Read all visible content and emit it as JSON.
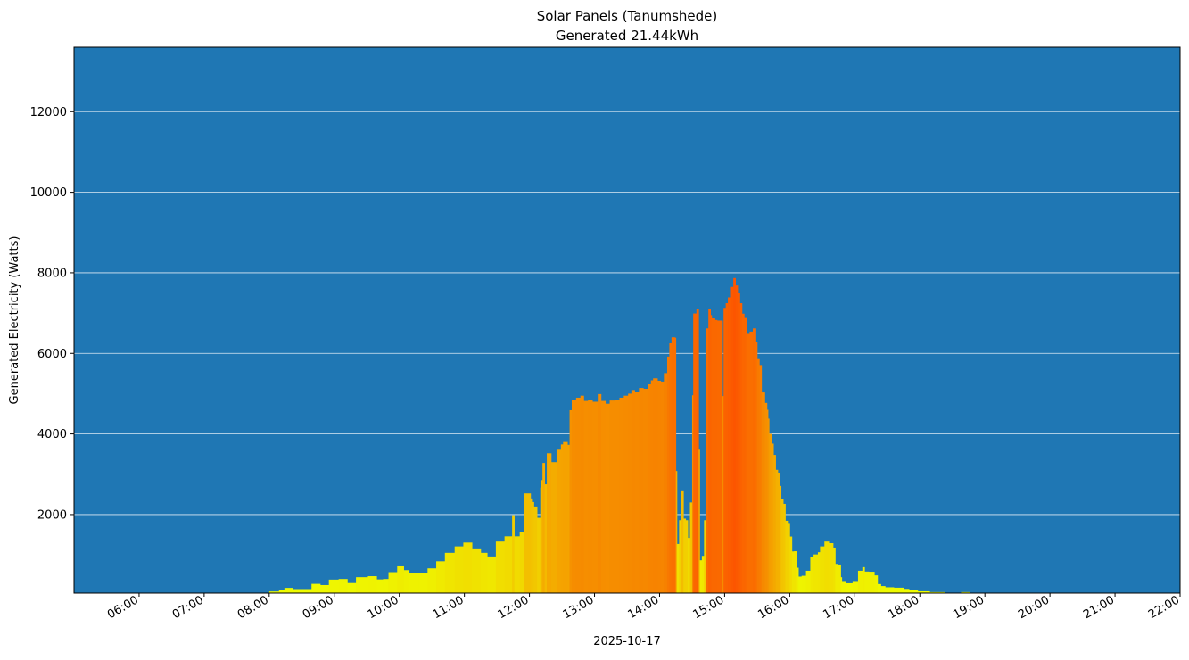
{
  "chart_data": {
    "type": "bar",
    "title": "Solar Panels (Tanumshede)",
    "subtitle": "Generated 21.44kWh",
    "xlabel": "2025-10-17",
    "ylabel": "Generated Electricity (Watts)",
    "xlim": [
      "05:00",
      "22:00"
    ],
    "ylim": [
      50,
      13600
    ],
    "x_ticks": [
      "06:00",
      "07:00",
      "08:00",
      "09:00",
      "10:00",
      "11:00",
      "12:00",
      "13:00",
      "14:00",
      "15:00",
      "16:00",
      "17:00",
      "18:00",
      "19:00",
      "20:00",
      "21:00",
      "22:00"
    ],
    "y_ticks": [
      2000,
      4000,
      6000,
      8000,
      10000,
      12000
    ],
    "grid": "horizontal",
    "background_color": "#1f77b4",
    "grid_color": "#ffffff",
    "colormap": [
      {
        "value": 0,
        "color": "#eeff00"
      },
      {
        "value": 1500,
        "color": "#f1da00"
      },
      {
        "value": 3000,
        "color": "#f4b200"
      },
      {
        "value": 5000,
        "color": "#f68a00"
      },
      {
        "value": 8000,
        "color": "#fd5300"
      }
    ],
    "points": [
      [
        "08:00",
        90
      ],
      [
        "08:09",
        125
      ],
      [
        "08:14",
        180
      ],
      [
        "08:22",
        150
      ],
      [
        "08:31",
        150
      ],
      [
        "08:39",
        280
      ],
      [
        "08:47",
        250
      ],
      [
        "08:55",
        385
      ],
      [
        "09:04",
        400
      ],
      [
        "09:12",
        300
      ],
      [
        "09:20",
        445
      ],
      [
        "09:31",
        470
      ],
      [
        "09:39",
        390
      ],
      [
        "09:45",
        400
      ],
      [
        "09:50",
        570
      ],
      [
        "09:58",
        715
      ],
      [
        "10:04",
        620
      ],
      [
        "10:09",
        545
      ],
      [
        "10:18",
        545
      ],
      [
        "10:26",
        665
      ],
      [
        "10:34",
        840
      ],
      [
        "10:42",
        1050
      ],
      [
        "10:51",
        1210
      ],
      [
        "10:59",
        1305
      ],
      [
        "11:07",
        1160
      ],
      [
        "11:15",
        1050
      ],
      [
        "11:21",
        960
      ],
      [
        "11:29",
        1330
      ],
      [
        "11:37",
        1460
      ],
      [
        "11:43",
        1460
      ],
      [
        "11:44",
        1985
      ],
      [
        "11:46",
        1460
      ],
      [
        "11:51",
        1565
      ],
      [
        "11:55",
        2525
      ],
      [
        "12:01",
        2400
      ],
      [
        "12:02",
        2310
      ],
      [
        "12:04",
        2200
      ],
      [
        "12:07",
        1920
      ],
      [
        "12:10",
        2670
      ],
      [
        "12:11",
        2855
      ],
      [
        "12:12",
        3280
      ],
      [
        "12:14",
        2750
      ],
      [
        "12:16",
        3520
      ],
      [
        "12:18",
        3520
      ],
      [
        "12:20",
        3300
      ],
      [
        "12:25",
        3630
      ],
      [
        "12:29",
        3740
      ],
      [
        "12:31",
        3800
      ],
      [
        "12:35",
        3730
      ],
      [
        "12:37",
        4590
      ],
      [
        "12:39",
        4850
      ],
      [
        "12:43",
        4900
      ],
      [
        "12:47",
        4950
      ],
      [
        "12:50",
        4820
      ],
      [
        "12:54",
        4850
      ],
      [
        "12:58",
        4800
      ],
      [
        "13:03",
        4990
      ],
      [
        "13:06",
        4820
      ],
      [
        "13:10",
        4750
      ],
      [
        "13:14",
        4830
      ],
      [
        "13:19",
        4850
      ],
      [
        "13:23",
        4900
      ],
      [
        "13:27",
        4950
      ],
      [
        "13:31",
        5000
      ],
      [
        "13:34",
        5090
      ],
      [
        "13:37",
        5050
      ],
      [
        "13:41",
        5140
      ],
      [
        "13:45",
        5120
      ],
      [
        "13:49",
        5250
      ],
      [
        "13:52",
        5330
      ],
      [
        "13:54",
        5380
      ],
      [
        "13:58",
        5320
      ],
      [
        "14:01",
        5300
      ],
      [
        "14:04",
        5510
      ],
      [
        "14:07",
        5920
      ],
      [
        "14:09",
        6250
      ],
      [
        "14:11",
        6400
      ],
      [
        "14:14",
        6390
      ],
      [
        "14:15",
        3080
      ],
      [
        "14:16",
        1270
      ],
      [
        "14:18",
        1860
      ],
      [
        "14:20",
        2600
      ],
      [
        "14:22",
        1900
      ],
      [
        "14:24",
        1860
      ],
      [
        "14:26",
        1420
      ],
      [
        "14:28",
        2300
      ],
      [
        "14:30",
        4960
      ],
      [
        "14:31",
        6990
      ],
      [
        "14:34",
        7110
      ],
      [
        "14:36",
        3630
      ],
      [
        "14:37",
        865
      ],
      [
        "14:39",
        975
      ],
      [
        "14:41",
        1860
      ],
      [
        "14:43",
        6620
      ],
      [
        "14:45",
        7110
      ],
      [
        "14:47",
        6950
      ],
      [
        "14:48",
        6875
      ],
      [
        "14:51",
        6830
      ],
      [
        "14:53",
        6815
      ],
      [
        "14:58",
        4940
      ],
      [
        "14:59",
        7130
      ],
      [
        "15:01",
        7245
      ],
      [
        "15:03",
        7390
      ],
      [
        "15:05",
        7650
      ],
      [
        "15:07",
        7650
      ],
      [
        "15:08",
        7870
      ],
      [
        "15:10",
        7685
      ],
      [
        "15:12",
        7500
      ],
      [
        "15:14",
        7245
      ],
      [
        "15:16",
        6985
      ],
      [
        "15:18",
        6900
      ],
      [
        "15:20",
        6505
      ],
      [
        "15:23",
        6540
      ],
      [
        "15:26",
        6620
      ],
      [
        "15:28",
        6285
      ],
      [
        "15:30",
        5880
      ],
      [
        "15:32",
        5710
      ],
      [
        "15:34",
        5030
      ],
      [
        "15:37",
        4770
      ],
      [
        "15:39",
        4600
      ],
      [
        "15:40",
        4380
      ],
      [
        "15:41",
        4000
      ],
      [
        "15:43",
        3760
      ],
      [
        "15:45",
        3480
      ],
      [
        "15:47",
        3110
      ],
      [
        "15:49",
        3040
      ],
      [
        "15:51",
        2710
      ],
      [
        "15:52",
        2375
      ],
      [
        "15:54",
        2265
      ],
      [
        "15:56",
        1845
      ],
      [
        "15:58",
        1790
      ],
      [
        "16:00",
        1455
      ],
      [
        "16:02",
        1085
      ],
      [
        "16:04",
        1090
      ],
      [
        "16:06",
        680
      ],
      [
        "16:08",
        460
      ],
      [
        "16:11",
        480
      ],
      [
        "16:15",
        605
      ],
      [
        "16:19",
        940
      ],
      [
        "16:22",
        1010
      ],
      [
        "16:26",
        1065
      ],
      [
        "16:28",
        1210
      ],
      [
        "16:32",
        1330
      ],
      [
        "16:36",
        1290
      ],
      [
        "16:40",
        1180
      ],
      [
        "16:42",
        775
      ],
      [
        "16:44",
        760
      ],
      [
        "16:47",
        445
      ],
      [
        "16:48",
        350
      ],
      [
        "16:52",
        295
      ],
      [
        "16:58",
        350
      ],
      [
        "17:03",
        605
      ],
      [
        "17:07",
        695
      ],
      [
        "17:09",
        585
      ],
      [
        "17:13",
        580
      ],
      [
        "17:18",
        490
      ],
      [
        "17:21",
        275
      ],
      [
        "17:24",
        225
      ],
      [
        "17:28",
        195
      ],
      [
        "17:36",
        185
      ],
      [
        "17:45",
        155
      ],
      [
        "17:50",
        125
      ],
      [
        "17:58",
        95
      ],
      [
        "18:09",
        75
      ],
      [
        "18:23",
        60
      ],
      [
        "18:34",
        40
      ],
      [
        "18:38",
        75
      ],
      [
        "18:46",
        0
      ]
    ]
  }
}
